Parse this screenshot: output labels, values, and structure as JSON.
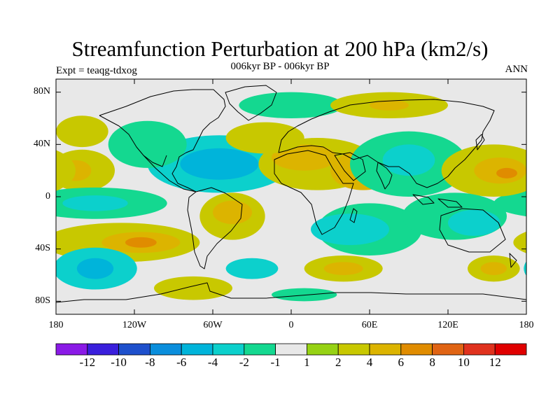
{
  "title": "Streamfunction Perturbation at 200 hPa (km2/s)",
  "subtitle": "006kyr BP - 006kyr BP",
  "left_label": "Expt = teaqg-tdxog",
  "right_label": "ANN",
  "lat_labels": [
    "80N",
    "40N",
    "0",
    "40S",
    "80S"
  ],
  "lon_labels": [
    "180",
    "120W",
    "60W",
    "0",
    "60E",
    "120E",
    "180"
  ],
  "colorbar": {
    "labels": [
      "-12",
      "-10",
      "-8",
      "-6",
      "-4",
      "-2",
      "-1",
      "1",
      "2",
      "4",
      "6",
      "8",
      "10",
      "12"
    ],
    "colors": [
      "#8a1ae6",
      "#3a1fdc",
      "#1e50cc",
      "#0a8edc",
      "#00b4da",
      "#0cd0cc",
      "#14d890",
      "#e8e8e8",
      "#96d214",
      "#c8c800",
      "#dcb400",
      "#e08c00",
      "#e06414",
      "#e0321e",
      "#e00000"
    ]
  },
  "map_data": {
    "projection": "cylindrical-equidistant",
    "lon_range": [
      -180,
      180
    ],
    "lat_range": [
      -90,
      90
    ],
    "background_color": "#e8e8e8",
    "blobs": [
      {
        "name": "n-atlantic-low",
        "lon": -55,
        "lat": 25,
        "rlon": 55,
        "rlat": 22,
        "level": -4
      },
      {
        "name": "n-atlantic-low-core",
        "lon": -55,
        "lat": 25,
        "rlon": 30,
        "rlat": 12,
        "level": -6
      },
      {
        "name": "n-america-low",
        "lon": -110,
        "lat": 40,
        "rlon": 30,
        "rlat": 18,
        "level": -2
      },
      {
        "name": "ne-pacific-high",
        "lon": -160,
        "lat": 20,
        "rlon": 25,
        "rlat": 16,
        "level": 2
      },
      {
        "name": "ne-pacific-high-core",
        "lon": -165,
        "lat": 20,
        "rlon": 12,
        "rlat": 8,
        "level": 4
      },
      {
        "name": "n-pacific-high",
        "lon": -160,
        "lat": 50,
        "rlon": 20,
        "rlat": 12,
        "level": 2
      },
      {
        "name": "tropical-pacific-low",
        "lon": -150,
        "lat": -5,
        "rlon": 55,
        "rlat": 12,
        "level": -2
      },
      {
        "name": "tropical-pacific-low-core",
        "lon": -150,
        "lat": -5,
        "rlon": 25,
        "rlat": 6,
        "level": -4
      },
      {
        "name": "south-america-high",
        "lon": -45,
        "lat": -15,
        "rlon": 25,
        "rlat": 18,
        "level": 2
      },
      {
        "name": "south-america-high-core",
        "lon": -45,
        "lat": -12,
        "rlon": 15,
        "rlat": 9,
        "level": 4
      },
      {
        "name": "s-pacific-high",
        "lon": -130,
        "lat": -35,
        "rlon": 60,
        "rlat": 15,
        "level": 2
      },
      {
        "name": "s-pacific-high-core",
        "lon": -115,
        "lat": -35,
        "rlon": 30,
        "rlat": 8,
        "level": 4
      },
      {
        "name": "s-pacific-high-peak",
        "lon": -115,
        "lat": -35,
        "rlon": 12,
        "rlat": 4,
        "level": 6
      },
      {
        "name": "s-pacific-low",
        "lon": -150,
        "lat": -55,
        "rlon": 32,
        "rlat": 16,
        "level": -4
      },
      {
        "name": "s-pacific-low-core",
        "lon": -150,
        "lat": -55,
        "rlon": 14,
        "rlat": 8,
        "level": -6
      },
      {
        "name": "s-atlantic-low",
        "lon": -30,
        "lat": -55,
        "rlon": 20,
        "rlat": 8,
        "level": -4
      },
      {
        "name": "antarctic-high",
        "lon": -75,
        "lat": -70,
        "rlon": 30,
        "rlat": 9,
        "level": 2
      },
      {
        "name": "antarctic-low",
        "lon": 10,
        "lat": -75,
        "rlon": 25,
        "rlat": 5,
        "level": -2
      },
      {
        "name": "n-africa-high",
        "lon": 20,
        "lat": 25,
        "rlon": 45,
        "rlat": 20,
        "level": 2
      },
      {
        "name": "n-africa-high-core",
        "lon": 10,
        "lat": 30,
        "rlon": 25,
        "rlat": 10,
        "level": 4
      },
      {
        "name": "arabia-high",
        "lon": 55,
        "lat": 20,
        "rlon": 25,
        "rlat": 15,
        "level": 4
      },
      {
        "name": "n-atlantic-subpolar-high",
        "lon": -20,
        "lat": 45,
        "rlon": 30,
        "rlat": 12,
        "level": 2
      },
      {
        "name": "europe-low",
        "lon": 0,
        "lat": 70,
        "rlon": 40,
        "rlat": 10,
        "level": -2
      },
      {
        "name": "siberia-high",
        "lon": 75,
        "lat": 70,
        "rlon": 45,
        "rlat": 10,
        "level": 2
      },
      {
        "name": "siberia-high-core",
        "lon": 75,
        "lat": 70,
        "rlon": 15,
        "rlat": 4,
        "level": 4
      },
      {
        "name": "asia-low",
        "lon": 90,
        "lat": 25,
        "rlon": 45,
        "rlat": 25,
        "level": -2
      },
      {
        "name": "asia-low-core",
        "lon": 90,
        "lat": 28,
        "rlon": 20,
        "rlat": 12,
        "level": -4
      },
      {
        "name": "nw-pacific-high",
        "lon": 155,
        "lat": 20,
        "rlon": 40,
        "rlat": 20,
        "level": 2
      },
      {
        "name": "nw-pacific-high-core",
        "lon": 160,
        "lat": 20,
        "rlon": 20,
        "rlat": 10,
        "level": 4
      },
      {
        "name": "nw-pacific-high-peak",
        "lon": 165,
        "lat": 18,
        "rlon": 8,
        "rlat": 4,
        "level": 6
      },
      {
        "name": "indian-ocean-low",
        "lon": 60,
        "lat": -25,
        "rlon": 40,
        "rlat": 20,
        "level": -2
      },
      {
        "name": "indian-ocean-low-core",
        "lon": 45,
        "lat": -25,
        "rlon": 30,
        "rlat": 12,
        "level": -4
      },
      {
        "name": "maritime-low",
        "lon": 125,
        "lat": -15,
        "rlon": 40,
        "rlat": 18,
        "level": -2
      },
      {
        "name": "maritime-low-core",
        "lon": 140,
        "lat": -20,
        "rlon": 20,
        "rlat": 10,
        "level": -4
      },
      {
        "name": "s-indian-high",
        "lon": 40,
        "lat": -55,
        "rlon": 30,
        "rlat": 10,
        "level": 2
      },
      {
        "name": "s-indian-high-core",
        "lon": 40,
        "lat": -55,
        "rlon": 15,
        "rlat": 5,
        "level": 4
      },
      {
        "name": "s-pacific-west-high",
        "lon": 155,
        "lat": -55,
        "rlon": 20,
        "rlat": 10,
        "level": 2
      },
      {
        "name": "s-pacific-west-high-core",
        "lon": 155,
        "lat": -55,
        "rlon": 10,
        "rlat": 5,
        "level": 4
      }
    ]
  }
}
